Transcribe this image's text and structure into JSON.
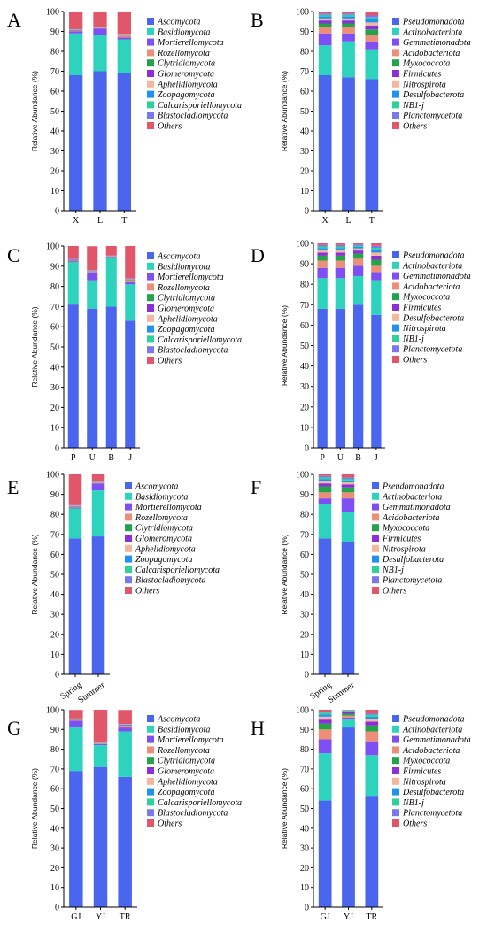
{
  "colors": {
    "fungi": [
      "#4a66ef",
      "#2ed3bd",
      "#7e4ff2",
      "#ee8e78",
      "#23a34a",
      "#8d2fd8",
      "#f4b79b",
      "#1f93ef",
      "#2ed19a",
      "#7a78ee",
      "#e2566a"
    ],
    "bacteria": [
      "#4a66ef",
      "#2ed3bd",
      "#7e4ff2",
      "#ee8e78",
      "#23a34a",
      "#8d2fd8",
      "#f4b79b",
      "#1f93ef",
      "#2ed19a",
      "#7a78ee",
      "#e2566a"
    ]
  },
  "chart_data": [
    {
      "panel": "A",
      "type": "bar",
      "stacked": true,
      "ylabel": "Relative Abundance (%)",
      "ylim": [
        0,
        100
      ],
      "yticks": [
        0,
        10,
        20,
        30,
        40,
        50,
        60,
        70,
        80,
        90,
        100
      ],
      "categories": [
        "X",
        "L",
        "T"
      ],
      "legend_position": "right",
      "series": [
        {
          "name": "Ascomycota",
          "values": [
            68,
            70,
            69
          ]
        },
        {
          "name": "Basidiomycota",
          "values": [
            21,
            18,
            17
          ]
        },
        {
          "name": "Mortierellomycota",
          "values": [
            1,
            3.5,
            1
          ]
        },
        {
          "name": "Rozellomycota",
          "values": [
            0.3,
            0.2,
            1
          ]
        },
        {
          "name": "Clytridiomycota",
          "values": [
            0.2,
            0.1,
            0.2
          ]
        },
        {
          "name": "Glomeromycota",
          "values": [
            0.2,
            0.1,
            0.2
          ]
        },
        {
          "name": "Aphelidiomycota",
          "values": [
            0.1,
            0.1,
            0.1
          ]
        },
        {
          "name": "Zoopagomycota",
          "values": [
            0.1,
            0.1,
            0.1
          ]
        },
        {
          "name": "Calcarisporiellomycota",
          "values": [
            0.1,
            0.1,
            0.1
          ]
        },
        {
          "name": "Blastocladiomycota",
          "values": [
            0.1,
            0.1,
            0.1
          ]
        },
        {
          "name": "Others",
          "values": [
            9.8,
            7.7,
            11.2
          ]
        }
      ]
    },
    {
      "panel": "B",
      "type": "bar",
      "stacked": true,
      "ylabel": "Relative Abundance (%)",
      "ylim": [
        0,
        100
      ],
      "yticks": [
        0,
        10,
        20,
        30,
        40,
        50,
        60,
        70,
        80,
        90,
        100
      ],
      "categories": [
        "X",
        "L",
        "T"
      ],
      "legend_position": "right",
      "series": [
        {
          "name": "Pseudomonadota",
          "values": [
            68,
            67,
            66
          ]
        },
        {
          "name": "Actinobacteriota",
          "values": [
            15,
            18,
            15
          ]
        },
        {
          "name": "Gemmatimonadota",
          "values": [
            6,
            4,
            4
          ]
        },
        {
          "name": "Acidobacteriota",
          "values": [
            3,
            3,
            3
          ]
        },
        {
          "name": "Myxococcota",
          "values": [
            2,
            2,
            3
          ]
        },
        {
          "name": "Firmicutes",
          "values": [
            1.5,
            1.5,
            2
          ]
        },
        {
          "name": "Nitrospirota",
          "values": [
            1,
            1,
            1.5
          ]
        },
        {
          "name": "Desulfobacterota",
          "values": [
            1,
            1,
            1.5
          ]
        },
        {
          "name": "NB1-j",
          "values": [
            0.8,
            0.8,
            1
          ]
        },
        {
          "name": "Planctomycetota",
          "values": [
            0.7,
            0.7,
            1
          ]
        },
        {
          "name": "Others",
          "values": [
            1,
            1,
            2
          ]
        }
      ]
    },
    {
      "panel": "C",
      "type": "bar",
      "stacked": true,
      "ylabel": "Relative Abundance (%)",
      "ylim": [
        0,
        100
      ],
      "yticks": [
        0,
        10,
        20,
        30,
        40,
        50,
        60,
        70,
        80,
        90,
        100
      ],
      "categories": [
        "P",
        "U",
        "B",
        "J"
      ],
      "legend_position": "right",
      "series": [
        {
          "name": "Ascomycota",
          "values": [
            71,
            69,
            70,
            63
          ]
        },
        {
          "name": "Basidiomycota",
          "values": [
            21,
            14,
            24,
            18
          ]
        },
        {
          "name": "Mortierellomycota",
          "values": [
            0.5,
            4,
            0.5,
            1
          ]
        },
        {
          "name": "Rozellomycota",
          "values": [
            0.3,
            0.2,
            0.2,
            1
          ]
        },
        {
          "name": "Clytridiomycota",
          "values": [
            0.2,
            0.2,
            0.1,
            0.3
          ]
        },
        {
          "name": "Glomeromycota",
          "values": [
            0.2,
            0.2,
            0.1,
            0.2
          ]
        },
        {
          "name": "Aphelidiomycota",
          "values": [
            0.1,
            0.1,
            0.1,
            0.2
          ]
        },
        {
          "name": "Zoopagomycota",
          "values": [
            0.1,
            0.1,
            0.1,
            0.1
          ]
        },
        {
          "name": "Calcarisporiellomycota",
          "values": [
            0.1,
            0.1,
            0.1,
            0.1
          ]
        },
        {
          "name": "Blastocladiomycota",
          "values": [
            0.1,
            0.1,
            0.1,
            0.1
          ]
        },
        {
          "name": "Others",
          "values": [
            6.4,
            11.9,
            4.7,
            16
          ]
        }
      ]
    },
    {
      "panel": "D",
      "type": "bar",
      "stacked": true,
      "ylabel": "Relative Abundance (%)",
      "ylim": [
        0,
        100
      ],
      "yticks": [
        0,
        10,
        20,
        30,
        40,
        50,
        60,
        70,
        80,
        90,
        100
      ],
      "categories": [
        "P",
        "U",
        "B",
        "J"
      ],
      "legend_position": "right",
      "series": [
        {
          "name": "Pseudomonadota",
          "values": [
            68,
            68,
            70,
            65
          ]
        },
        {
          "name": "Actinobacteriota",
          "values": [
            15,
            15,
            14,
            17
          ]
        },
        {
          "name": "Gemmatimonadota",
          "values": [
            5,
            5,
            5,
            4
          ]
        },
        {
          "name": "Acidobacteriota",
          "values": [
            3.5,
            3.5,
            3.5,
            3
          ]
        },
        {
          "name": "Myxococcota",
          "values": [
            2.5,
            2.5,
            2.5,
            3
          ]
        },
        {
          "name": "Firmicutes",
          "values": [
            1.5,
            1.5,
            1.5,
            2
          ]
        },
        {
          "name": "Desulfobacterota",
          "values": [
            1.2,
            1.2,
            1,
            1.5
          ]
        },
        {
          "name": "Nitrospirota",
          "values": [
            1,
            1,
            0.8,
            1.2
          ]
        },
        {
          "name": "NB1-j",
          "values": [
            0.8,
            0.8,
            0.6,
            1.1
          ]
        },
        {
          "name": "Planctomycetota",
          "values": [
            0.7,
            0.7,
            0.6,
            1
          ]
        },
        {
          "name": "Others",
          "values": [
            0.8,
            0.8,
            0.5,
            1.2
          ]
        }
      ]
    },
    {
      "panel": "E",
      "type": "bar",
      "stacked": true,
      "ylabel": "Relative Abundance (%)",
      "ylim": [
        0,
        100
      ],
      "yticks": [
        0,
        10,
        20,
        30,
        40,
        50,
        60,
        70,
        80,
        90,
        100
      ],
      "categories": [
        "Spring",
        "Summer"
      ],
      "rotated_tick_labels": true,
      "legend_position": "right",
      "series": [
        {
          "name": "Ascomycota",
          "values": [
            68,
            69
          ]
        },
        {
          "name": "Basidiomycota",
          "values": [
            15,
            23
          ]
        },
        {
          "name": "Mortierellomycota",
          "values": [
            0.5,
            3.5
          ]
        },
        {
          "name": "Rozellomycota",
          "values": [
            0.3,
            0.2
          ]
        },
        {
          "name": "Clytridiomycota",
          "values": [
            0.2,
            0.1
          ]
        },
        {
          "name": "Glomeromycota",
          "values": [
            0.2,
            0.1
          ]
        },
        {
          "name": "Aphelidiomycota",
          "values": [
            0.1,
            0.1
          ]
        },
        {
          "name": "Zoopagomycota",
          "values": [
            0.1,
            0.1
          ]
        },
        {
          "name": "Calcarisporiellomycota",
          "values": [
            0.1,
            0.1
          ]
        },
        {
          "name": "Blastocladiomycota",
          "values": [
            0.1,
            0.1
          ]
        },
        {
          "name": "Others",
          "values": [
            15.4,
            3.7
          ]
        }
      ]
    },
    {
      "panel": "F",
      "type": "bar",
      "stacked": true,
      "ylabel": "Relative Abundance (%)",
      "ylim": [
        0,
        100
      ],
      "yticks": [
        0,
        10,
        20,
        30,
        40,
        50,
        60,
        70,
        80,
        90,
        100
      ],
      "categories": [
        "Spring",
        "Summer"
      ],
      "rotated_tick_labels": true,
      "legend_position": "right",
      "series": [
        {
          "name": "Pseudomonadota",
          "values": [
            68,
            66
          ]
        },
        {
          "name": "Actinobacteriota",
          "values": [
            17,
            15
          ]
        },
        {
          "name": "Gemmatimonadota",
          "values": [
            3,
            7
          ]
        },
        {
          "name": "Acidobacteriota",
          "values": [
            3,
            3
          ]
        },
        {
          "name": "Myxococcota",
          "values": [
            3,
            2.5
          ]
        },
        {
          "name": "Firmicutes",
          "values": [
            1.5,
            1.5
          ]
        },
        {
          "name": "Nitrospirota",
          "values": [
            1.2,
            1
          ]
        },
        {
          "name": "Desulfobacterota",
          "values": [
            1,
            1
          ]
        },
        {
          "name": "NB1-j",
          "values": [
            0.8,
            0.8
          ]
        },
        {
          "name": "Planctomycetota",
          "values": [
            0.7,
            0.7
          ]
        },
        {
          "name": "Others",
          "values": [
            0.8,
            1.5
          ]
        }
      ]
    },
    {
      "panel": "G",
      "type": "bar",
      "stacked": true,
      "ylabel": "Relative Abundance (%)",
      "ylim": [
        0,
        100
      ],
      "yticks": [
        0,
        10,
        20,
        30,
        40,
        50,
        60,
        70,
        80,
        90,
        100
      ],
      "categories": [
        "GJ",
        "YJ",
        "TR"
      ],
      "legend_position": "right",
      "series": [
        {
          "name": "Ascomycota",
          "values": [
            69,
            71,
            66
          ]
        },
        {
          "name": "Basidiomycota",
          "values": [
            22,
            11,
            23
          ]
        },
        {
          "name": "Mortierellomycota",
          "values": [
            3.5,
            0.5,
            2
          ]
        },
        {
          "name": "Rozellomycota",
          "values": [
            0.3,
            0.2,
            1
          ]
        },
        {
          "name": "Clytridiomycota",
          "values": [
            0.2,
            0.1,
            0.2
          ]
        },
        {
          "name": "Glomeromycota",
          "values": [
            0.2,
            0.1,
            0.2
          ]
        },
        {
          "name": "Aphelidiomycota",
          "values": [
            0.1,
            0.1,
            0.1
          ]
        },
        {
          "name": "Zoopagomycota",
          "values": [
            0.1,
            0.1,
            0.1
          ]
        },
        {
          "name": "Calcarisporiellomycota",
          "values": [
            0.1,
            0.1,
            0.1
          ]
        },
        {
          "name": "Blastocladiomycota",
          "values": [
            0.1,
            0.1,
            0.1
          ]
        },
        {
          "name": "Others",
          "values": [
            4.3,
            16.7,
            7.1
          ]
        }
      ]
    },
    {
      "panel": "H",
      "type": "bar",
      "stacked": true,
      "ylabel": "Relative Abundance (%)",
      "ylim": [
        0,
        100
      ],
      "yticks": [
        0,
        10,
        20,
        30,
        40,
        50,
        60,
        70,
        80,
        90,
        100
      ],
      "categories": [
        "GJ",
        "YJ",
        "TR"
      ],
      "legend_position": "right",
      "series": [
        {
          "name": "Pseudomonadota",
          "values": [
            54,
            91,
            56
          ]
        },
        {
          "name": "Actinobacteriota",
          "values": [
            24,
            4,
            21
          ]
        },
        {
          "name": "Gemmatimonadota",
          "values": [
            7,
            1,
            7
          ]
        },
        {
          "name": "Acidobacteriota",
          "values": [
            5,
            1,
            5
          ]
        },
        {
          "name": "Myxococcota",
          "values": [
            3,
            1,
            3
          ]
        },
        {
          "name": "Firmicutes",
          "values": [
            2,
            1,
            2
          ]
        },
        {
          "name": "Nitrospirota",
          "values": [
            1.5,
            0.3,
            1.5
          ]
        },
        {
          "name": "Desulfobacterota",
          "values": [
            1,
            0.3,
            1
          ]
        },
        {
          "name": "NB1-j",
          "values": [
            1,
            0.2,
            1
          ]
        },
        {
          "name": "Planctomycetota",
          "values": [
            0.5,
            0.1,
            0.5
          ]
        },
        {
          "name": "Others",
          "values": [
            1,
            0.1,
            2
          ]
        }
      ]
    }
  ]
}
